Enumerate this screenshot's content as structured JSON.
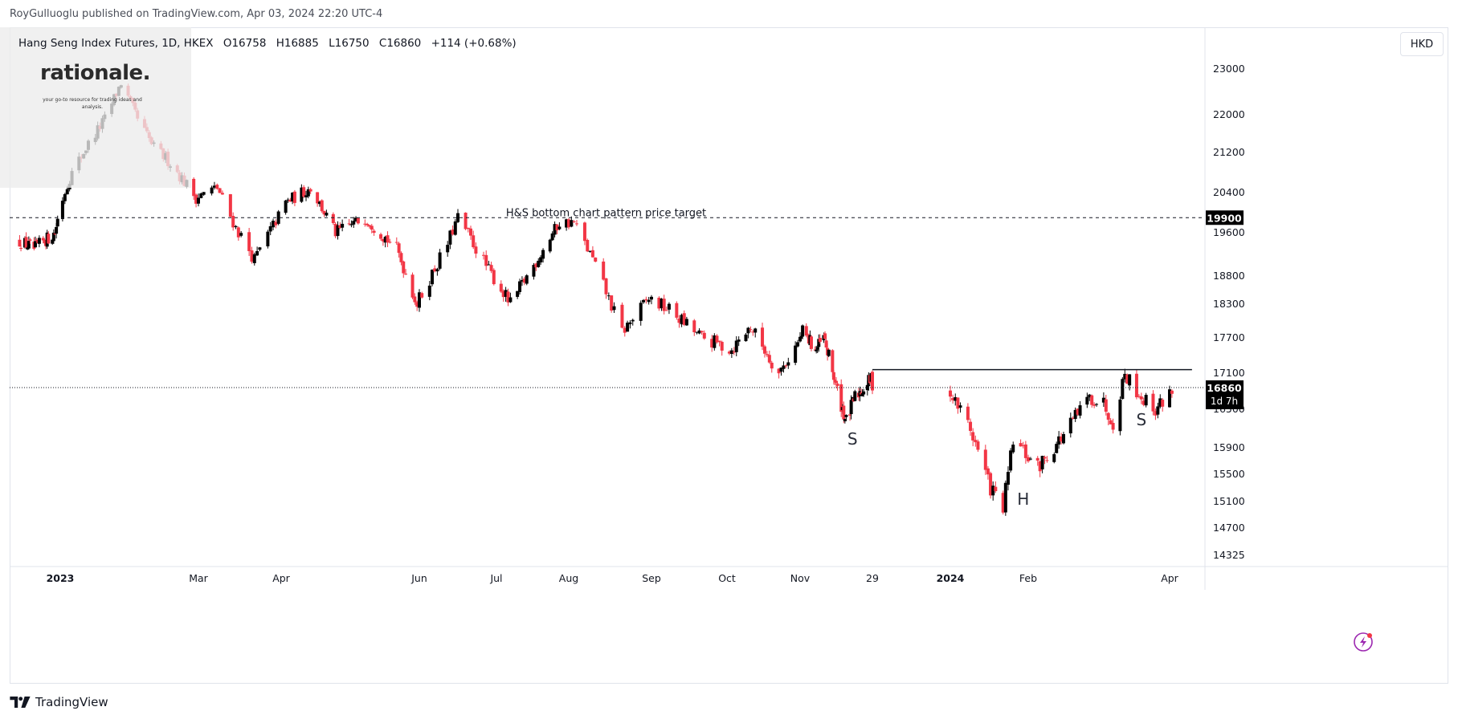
{
  "header": {
    "publisher": "RoyGulluoglu published on TradingView.com, Apr 03, 2024 22:20 UTC-4"
  },
  "symbol": {
    "name": "Hang Seng Index Futures, 1D, HKEX",
    "open": "O16758",
    "high": "H16885",
    "low": "L16750",
    "close": "C16860",
    "change": "+114 (+0.68%)"
  },
  "logo": {
    "word": "rationale.",
    "tagline": "your go-to resource for trading ideas and analysis."
  },
  "currency": "HKD",
  "footer": {
    "brand": "TradingView"
  },
  "colors": {
    "up": "#000000",
    "down": "#f23645",
    "grid": "#e0e3eb",
    "price_label_bg": "#000000"
  },
  "icons": [
    "tradingview-logo-icon",
    "lightning-icon"
  ],
  "chart_data": {
    "type": "candlestick",
    "title": "Hang Seng Index Futures, 1D, HKEX",
    "ylim": [
      14325,
      23000
    ],
    "y_ticks": [
      23000,
      22000,
      21200,
      20400,
      19600,
      18800,
      18300,
      17700,
      17100,
      16500,
      15900,
      15500,
      15100,
      14700,
      14325
    ],
    "x_ticks": [
      "2023",
      "Mar",
      "Apr",
      "Jun",
      "Jul",
      "Aug",
      "Sep",
      "Oct",
      "Nov",
      "29",
      "2024",
      "Feb",
      "Apr"
    ],
    "x_tick_dates": [
      "2023-01-01",
      "2023-03-01",
      "2023-04-01",
      "2023-06-01",
      "2023-07-01",
      "2023-08-01",
      "2023-09-01",
      "2023-10-01",
      "2023-11-01",
      "2023-12-29",
      "2024-01-01",
      "2024-02-01",
      "2024-04-01"
    ],
    "price_path": [
      {
        "date": "2022-12-01",
        "close": 19450
      },
      {
        "date": "2022-12-12",
        "close": 19300
      },
      {
        "date": "2022-12-28",
        "close": 19600
      },
      {
        "date": "2023-01-05",
        "close": 20700
      },
      {
        "date": "2023-01-12",
        "close": 21300
      },
      {
        "date": "2023-01-20",
        "close": 21900
      },
      {
        "date": "2023-01-27",
        "close": 22700
      },
      {
        "date": "2023-02-03",
        "close": 21900
      },
      {
        "date": "2023-02-10",
        "close": 21300
      },
      {
        "date": "2023-02-17",
        "close": 21000
      },
      {
        "date": "2023-02-28",
        "close": 20300
      },
      {
        "date": "2023-03-08",
        "close": 20500
      },
      {
        "date": "2023-03-15",
        "close": 19700
      },
      {
        "date": "2023-03-22",
        "close": 19100
      },
      {
        "date": "2023-04-03",
        "close": 20200
      },
      {
        "date": "2023-04-14",
        "close": 20500
      },
      {
        "date": "2023-04-25",
        "close": 19600
      },
      {
        "date": "2023-05-08",
        "close": 19900
      },
      {
        "date": "2023-05-22",
        "close": 19300
      },
      {
        "date": "2023-05-31",
        "close": 18300
      },
      {
        "date": "2023-06-12",
        "close": 19400
      },
      {
        "date": "2023-06-16",
        "close": 19900
      },
      {
        "date": "2023-06-28",
        "close": 18900
      },
      {
        "date": "2023-07-07",
        "close": 18300
      },
      {
        "date": "2023-07-17",
        "close": 19000
      },
      {
        "date": "2023-07-28",
        "close": 19800
      },
      {
        "date": "2023-08-03",
        "close": 19800
      },
      {
        "date": "2023-08-10",
        "close": 19100
      },
      {
        "date": "2023-08-21",
        "close": 17800
      },
      {
        "date": "2023-08-31",
        "close": 18400
      },
      {
        "date": "2023-09-08",
        "close": 18200
      },
      {
        "date": "2023-09-21",
        "close": 17700
      },
      {
        "date": "2023-10-03",
        "close": 17500
      },
      {
        "date": "2023-10-11",
        "close": 17900
      },
      {
        "date": "2023-10-23",
        "close": 17100
      },
      {
        "date": "2023-11-03",
        "close": 17800
      },
      {
        "date": "2023-11-14",
        "close": 17500
      },
      {
        "date": "2023-11-20",
        "close": 17700
      },
      {
        "date": "2023-12-01",
        "close": 16800
      },
      {
        "date": "2023-12-08",
        "close": 16300
      },
      {
        "date": "2023-12-15",
        "close": 16700
      },
      {
        "date": "2023-12-28",
        "close": 17000
      },
      {
        "date": "2024-01-08",
        "close": 16300
      },
      {
        "date": "2024-01-17",
        "close": 15300
      },
      {
        "date": "2024-01-22",
        "close": 15000
      },
      {
        "date": "2024-01-26",
        "close": 16000
      },
      {
        "date": "2024-02-05",
        "close": 15600
      },
      {
        "date": "2024-02-16",
        "close": 16100
      },
      {
        "date": "2024-02-27",
        "close": 16700
      },
      {
        "date": "2024-03-04",
        "close": 16600
      },
      {
        "date": "2024-03-08",
        "close": 16300
      },
      {
        "date": "2024-03-13",
        "close": 17100
      },
      {
        "date": "2024-03-20",
        "close": 16700
      },
      {
        "date": "2024-03-26",
        "close": 16500
      },
      {
        "date": "2024-04-03",
        "close": 16860
      }
    ],
    "last_price": 16860,
    "countdown": "1d 7h",
    "target_level": 19900,
    "neckline": {
      "value": 17160,
      "from": "2023-12-29",
      "to": "2024-04-03"
    },
    "annotations": [
      {
        "text": "H&S bottom chart pattern price target",
        "date": "2023-08-15",
        "price": 19930
      },
      {
        "text": "S",
        "date": "2023-12-13",
        "price": 15950
      },
      {
        "text": "H",
        "date": "2024-01-30",
        "price": 15050
      },
      {
        "text": "S",
        "date": "2024-03-20",
        "price": 16250
      }
    ]
  }
}
